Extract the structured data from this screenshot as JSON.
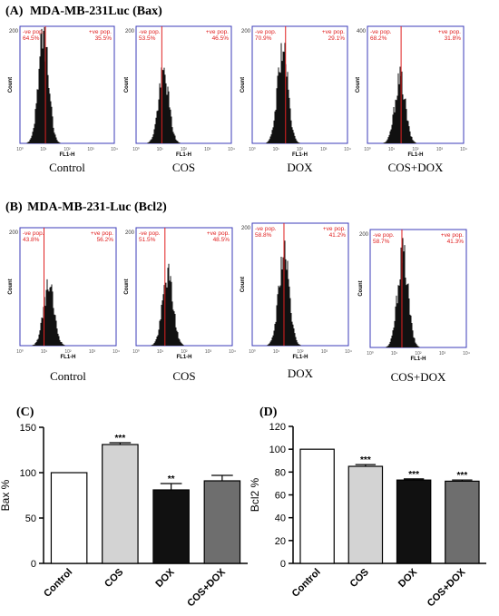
{
  "chart_data": [
    {
      "type": "histogram",
      "panel": "(A)",
      "title": "MDA-MB-231Luc (Bax)",
      "plots": [
        {
          "label": "Control",
          "y_max": "200",
          "neg": "-ve pop.",
          "neg_pct": "64.5%",
          "pos": "+ve pop.",
          "pos_pct": "35.5%",
          "ylabel": "Count",
          "xlabel": "FL1-H",
          "gate_fraction": 0.27,
          "peak_center": 0.25,
          "peak_height": 0.98
        },
        {
          "label": "COS",
          "y_max": "200",
          "neg": "-ve pop.",
          "neg_pct": "53.5%",
          "pos": "+ve pop.",
          "pos_pct": "46.5%",
          "ylabel": "Count",
          "xlabel": "FL1-H",
          "gate_fraction": 0.27,
          "peak_center": 0.29,
          "peak_height": 0.65
        },
        {
          "label": "DOX",
          "y_max": "200",
          "neg": "-ve pop.",
          "neg_pct": "70.9%",
          "pos": "+ve pop.",
          "pos_pct": "29.1%",
          "ylabel": "Count",
          "xlabel": "FL1-H",
          "gate_fraction": 0.35,
          "peak_center": 0.32,
          "peak_height": 0.86
        },
        {
          "label": "COS+DOX",
          "y_max": "400",
          "neg": "-ve pop.",
          "neg_pct": "68.2%",
          "pos": "+ve pop.",
          "pos_pct": "31.8%",
          "ylabel": "Count",
          "xlabel": "FL1-H",
          "gate_fraction": 0.35,
          "peak_center": 0.34,
          "peak_height": 0.6
        }
      ]
    },
    {
      "type": "histogram",
      "panel": "(B)",
      "title": "MDA-MB-231-Luc (Bcl2)",
      "plots": [
        {
          "label": "Control",
          "y_max": "200",
          "neg": "-ve pop.",
          "neg_pct": "43.8%",
          "pos": "+ve pop.",
          "pos_pct": "56.2%",
          "ylabel": "Count",
          "xlabel": "FL1-H",
          "gate_fraction": 0.25,
          "peak_center": 0.3,
          "peak_height": 0.55
        },
        {
          "label": "COS",
          "y_max": "200",
          "neg": "-ve pop.",
          "neg_pct": "51.5%",
          "pos": "+ve pop.",
          "pos_pct": "48.5%",
          "ylabel": "Count",
          "xlabel": "FL1-H",
          "gate_fraction": 0.3,
          "peak_center": 0.33,
          "peak_height": 0.65
        },
        {
          "label": "DOX",
          "y_max": "200",
          "neg": "-ve pop.",
          "neg_pct": "58.8%",
          "pos": "+ve pop.",
          "pos_pct": "41.2%",
          "ylabel": "Count",
          "xlabel": "FL1-H",
          "gate_fraction": 0.33,
          "peak_center": 0.33,
          "peak_height": 0.8
        },
        {
          "label": "COS+DOX",
          "y_max": "200",
          "neg": "-ve pop.",
          "neg_pct": "58.7%",
          "pos": "+ve pop.",
          "pos_pct": "41.3%",
          "ylabel": "Count",
          "xlabel": "FL1-H",
          "gate_fraction": 0.33,
          "peak_center": 0.34,
          "peak_height": 0.85
        }
      ]
    },
    {
      "type": "bar",
      "panel": "(C)",
      "ylabel": "Bax %",
      "ylim": [
        0,
        150
      ],
      "yticks": [
        0,
        50,
        100,
        150
      ],
      "categories": [
        "Control",
        "COS",
        "DOX",
        "COS+DOX"
      ],
      "values": [
        100,
        131,
        81,
        91
      ],
      "errors": [
        0,
        2,
        7,
        6
      ],
      "significance": [
        "",
        "***",
        "**",
        ""
      ],
      "colors": [
        "#ffffff",
        "#d3d3d3",
        "#111111",
        "#6e6e6e"
      ]
    },
    {
      "type": "bar",
      "panel": "(D)",
      "ylabel": "Bcl2 %",
      "ylim": [
        0,
        120
      ],
      "yticks": [
        0,
        20,
        40,
        60,
        80,
        100,
        120
      ],
      "categories": [
        "Control",
        "COS",
        "DOX",
        "COS+DOX"
      ],
      "values": [
        100,
        85,
        73,
        72
      ],
      "errors": [
        0,
        1.5,
        1,
        1
      ],
      "significance": [
        "",
        "***",
        "***",
        "***"
      ],
      "colors": [
        "#ffffff",
        "#d3d3d3",
        "#111111",
        "#6e6e6e"
      ]
    }
  ]
}
